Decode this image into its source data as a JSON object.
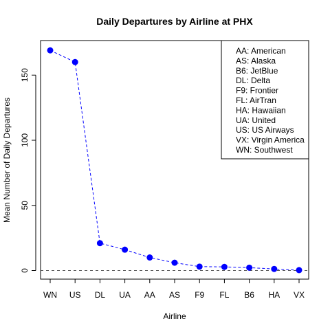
{
  "chart_data": {
    "type": "line",
    "title": "Daily Departures by Airline at PHX",
    "xlabel": "Airline",
    "ylabel": "Mean Number of Daily Departures",
    "categories": [
      "WN",
      "US",
      "DL",
      "UA",
      "AA",
      "AS",
      "F9",
      "FL",
      "B6",
      "HA",
      "VX"
    ],
    "values": [
      169,
      160,
      21,
      16,
      10,
      6,
      3,
      2.8,
      2.2,
      1.2,
      0.3
    ],
    "ylim": [
      0,
      170
    ],
    "yticks": [
      "0",
      "50",
      "100",
      "150"
    ],
    "reference_line_y": 0,
    "grid": false,
    "legend_position": "top-right",
    "legend": [
      "AA: American",
      "AS: Alaska",
      "B6: JetBlue",
      "DL: Delta",
      "F9: Frontier",
      "FL: AirTran",
      "HA: Hawaiian",
      "UA: United",
      "US: US Airways",
      "VX: Virgin America",
      "WN: Southwest"
    ],
    "colors": {
      "series": "#0000ff",
      "reference_line": "#555555",
      "axis": "#000000"
    }
  }
}
